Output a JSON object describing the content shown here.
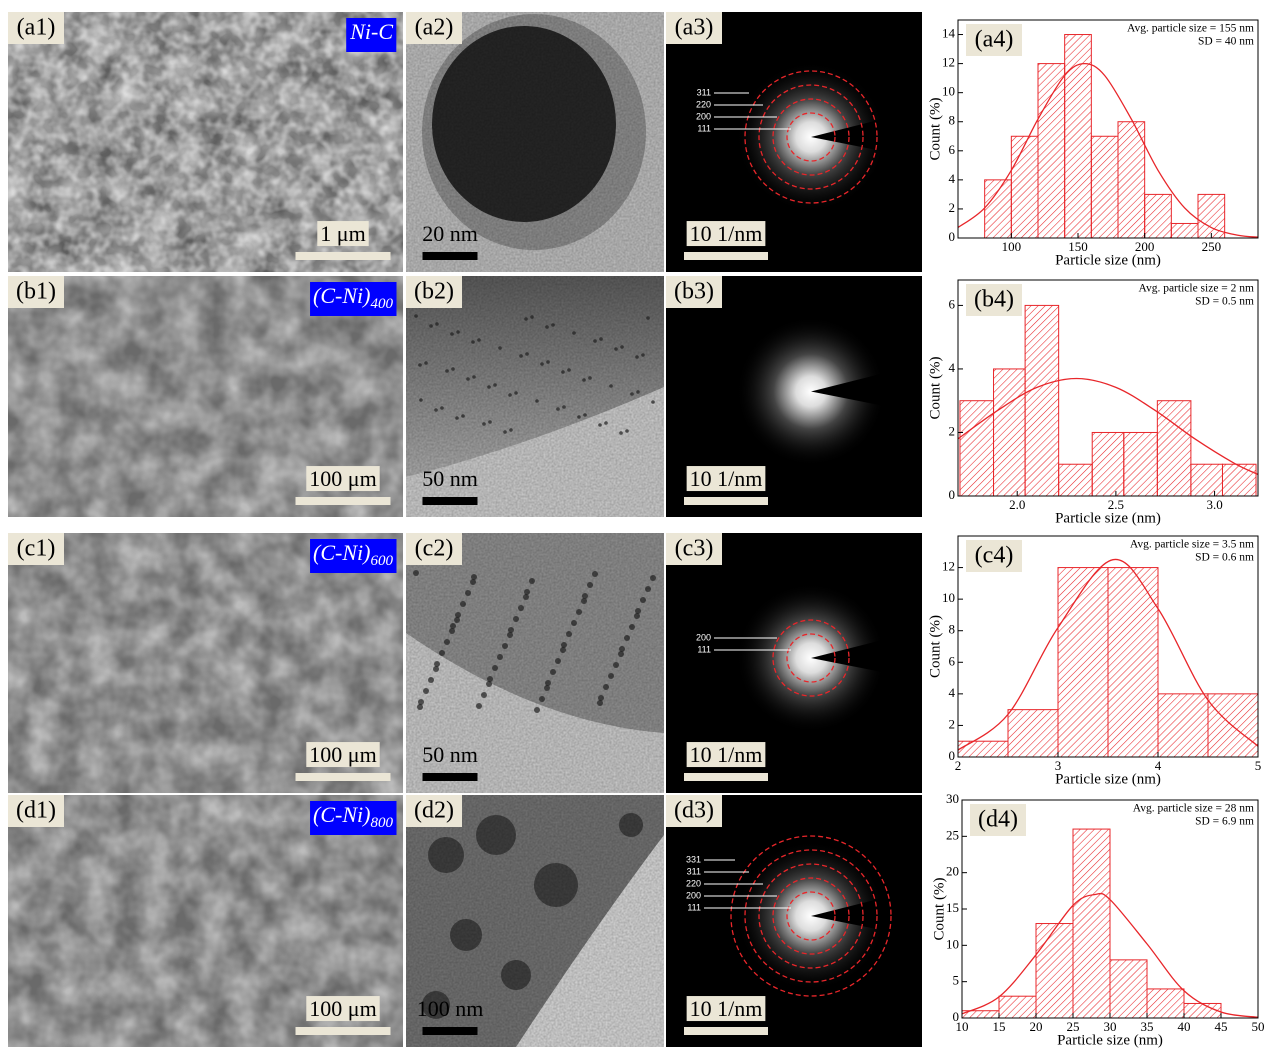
{
  "rows": [
    {
      "sem": {
        "label": "(a1)",
        "tag": "Ni-C",
        "scale": "1 μm"
      },
      "tem": {
        "label": "(a2)",
        "scale": "20 nm"
      },
      "saed": {
        "label": "(a3)",
        "scale": "10 1/nm",
        "rings": [
          "311",
          "220",
          "200",
          "111"
        ]
      }
    },
    {
      "sem": {
        "label": "(b1)",
        "tag": "(C-Ni)",
        "tag_sub": "400",
        "scale": "100 μm"
      },
      "tem": {
        "label": "(b2)",
        "scale": "50 nm"
      },
      "saed": {
        "label": "(b3)",
        "scale": "10 1/nm"
      }
    },
    {
      "sem": {
        "label": "(c1)",
        "tag": "(C-Ni)",
        "tag_sub": "600",
        "scale": "100 μm"
      },
      "tem": {
        "label": "(c2)",
        "scale": "50 nm"
      },
      "saed": {
        "label": "(c3)",
        "scale": "10 1/nm",
        "rings": [
          "200",
          "111"
        ]
      }
    },
    {
      "sem": {
        "label": "(d1)",
        "tag": "(C-Ni)",
        "tag_sub": "800",
        "scale": "100 μm"
      },
      "tem": {
        "label": "(d2)",
        "scale": "100 nm"
      },
      "saed": {
        "label": "(d3)",
        "scale": "10 1/nm",
        "rings": [
          "331",
          "311",
          "220",
          "200",
          "111"
        ]
      }
    }
  ],
  "chart_data": [
    {
      "type": "histogram",
      "panel_label": "(a4)",
      "annotations": [
        "Avg. particle size = 155 nm",
        "SD = 40 nm"
      ],
      "x_label": "Particle size (nm)",
      "y_label": "Count (%)",
      "color": "#e8262a",
      "bins": [
        80,
        100,
        120,
        140,
        160,
        180,
        200,
        220,
        240,
        260
      ],
      "values": [
        4,
        7,
        12,
        14,
        7,
        8,
        3,
        1,
        3
      ],
      "xlim": [
        60,
        285
      ],
      "ylim": [
        0,
        15
      ],
      "xticks": [
        100,
        150,
        200,
        250
      ],
      "yticks": [
        0,
        2,
        4,
        6,
        8,
        10,
        12,
        14
      ],
      "fit": {
        "x": [
          60,
          80,
          100,
          120,
          140,
          155,
          170,
          190,
          210,
          230,
          250,
          270,
          285
        ],
        "values": [
          0.72,
          2.07,
          4.66,
          8.18,
          11.18,
          12,
          11.18,
          8.18,
          4.66,
          2.07,
          0.72,
          0.19,
          0.06
        ]
      }
    },
    {
      "type": "histogram",
      "panel_label": "(b4)",
      "annotations": [
        "Avg. particle size = 2 nm",
        "SD = 0.5 nm"
      ],
      "x_label": "Particle size (nm)",
      "y_label": "Count (%)",
      "color": "#e8262a",
      "bins": [
        1.71,
        1.88,
        2.04,
        2.21,
        2.38,
        2.54,
        2.71,
        2.88,
        3.04,
        3.21
      ],
      "values": [
        3,
        4,
        6,
        1,
        2,
        2,
        3,
        1,
        1
      ],
      "xlim": [
        1.7,
        3.22
      ],
      "ylim": [
        0,
        6.8
      ],
      "xticks": [
        {
          "value": 2,
          "label": "2.0"
        },
        {
          "value": 2.5,
          "label": "2.5"
        },
        {
          "value": 3,
          "label": "3.0"
        }
      ],
      "yticks": [
        0,
        2,
        4,
        6
      ],
      "fit": {
        "x": [
          1.7,
          1.9,
          2.1,
          2.3,
          2.5,
          2.7,
          2.9,
          3.1,
          3.22
        ],
        "values": [
          1.8,
          2.69,
          3.42,
          3.7,
          3.42,
          2.69,
          1.8,
          1.03,
          0.68
        ]
      }
    },
    {
      "type": "histogram",
      "panel_label": "(c4)",
      "annotations": [
        "Avg. particle size = 3.5 nm",
        "SD = 0.6 nm"
      ],
      "x_label": "Particle size (nm)",
      "y_label": "Count (%)",
      "color": "#e8262a",
      "bins": [
        2,
        2.5,
        3,
        3.5,
        4,
        4.5,
        5
      ],
      "values": [
        1,
        3,
        12,
        12,
        4,
        4
      ],
      "xlim": [
        2,
        5
      ],
      "ylim": [
        0,
        14
      ],
      "xticks": [
        2,
        3,
        4,
        5
      ],
      "yticks": [
        0,
        2,
        4,
        6,
        8,
        10,
        12
      ],
      "fit": {
        "x": [
          2,
          2.5,
          3,
          3.55,
          4,
          4.5,
          5
        ],
        "values": [
          0.44,
          2.7,
          8.2,
          12.5,
          9.4,
          3.6,
          0.68
        ]
      }
    },
    {
      "type": "histogram",
      "panel_label": "(d4)",
      "annotations": [
        "Avg. particle size = 28 nm",
        "SD = 6.9 nm"
      ],
      "x_label": "Particle size (nm)",
      "y_label": "Count (%)",
      "color": "#e8262a",
      "bins": [
        10,
        15,
        20,
        25,
        30,
        35,
        40,
        45
      ],
      "values": [
        1,
        3,
        13,
        26,
        8,
        4,
        2
      ],
      "xlim": [
        10,
        50
      ],
      "ylim": [
        0,
        30
      ],
      "xticks": [
        10,
        15,
        20,
        25,
        30,
        35,
        40,
        45,
        50
      ],
      "yticks": [
        0,
        5,
        10,
        15,
        20,
        25,
        30
      ],
      "fit": {
        "x": [
          10,
          15,
          20,
          25,
          28,
          30,
          35,
          40,
          45,
          50
        ],
        "values": [
          0.57,
          2.9,
          8.7,
          15.5,
          17,
          16.3,
          10.2,
          3.75,
          0.82,
          0.1
        ]
      }
    }
  ]
}
